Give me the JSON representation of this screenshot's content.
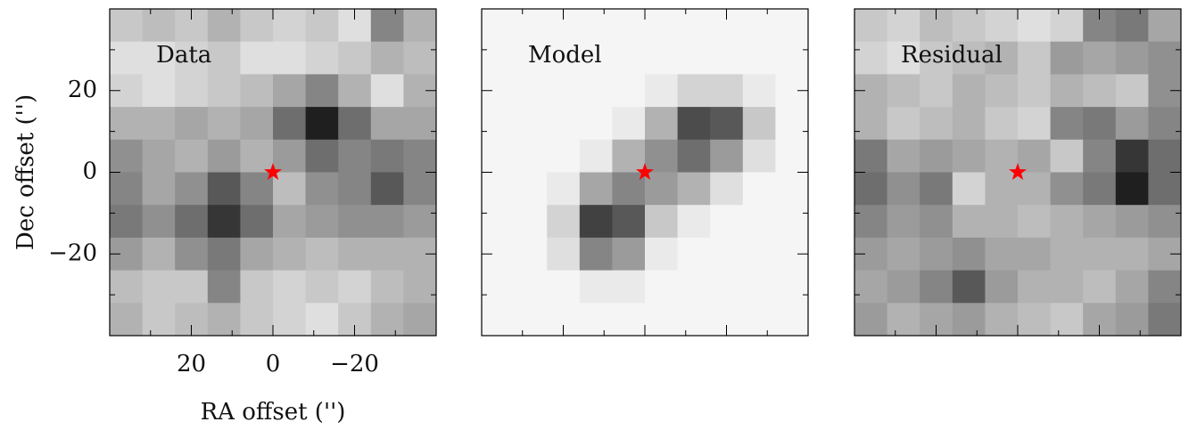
{
  "chart_data": [
    {
      "type": "heatmap",
      "title": "Data",
      "xlabel": "RA offset ('')",
      "ylabel": "Dec offset ('')",
      "tick_labels": true,
      "xlim": [
        40,
        -40
      ],
      "ylim": [
        -40,
        40
      ],
      "xticks": [
        20,
        0,
        {
          "value": -20,
          "label": "−20"
        }
      ],
      "yticks": [
        {
          "value": -20,
          "label": "−20"
        },
        0,
        20
      ],
      "minor_ticks": [
        -30,
        -10,
        10,
        30
      ],
      "marker": {
        "x": 0,
        "y": 0,
        "color": "#ff0000"
      },
      "z": [
        [
          0.2,
          0.25,
          0.2,
          0.3,
          0.2,
          0.15,
          0.2,
          0.1,
          0.5,
          0.3
        ],
        [
          0.1,
          0.1,
          0.15,
          0.2,
          0.1,
          0.1,
          0.15,
          0.2,
          0.3,
          0.25
        ],
        [
          0.15,
          0.1,
          0.15,
          0.2,
          0.25,
          0.35,
          0.5,
          0.3,
          0.1,
          0.3
        ],
        [
          0.3,
          0.3,
          0.35,
          0.3,
          0.35,
          0.6,
          0.95,
          0.6,
          0.35,
          0.35
        ],
        [
          0.45,
          0.35,
          0.3,
          0.4,
          0.3,
          0.4,
          0.6,
          0.5,
          0.55,
          0.5
        ],
        [
          0.5,
          0.35,
          0.45,
          0.7,
          0.5,
          0.25,
          0.45,
          0.5,
          0.7,
          0.5
        ],
        [
          0.55,
          0.45,
          0.6,
          0.85,
          0.6,
          0.35,
          0.4,
          0.45,
          0.45,
          0.4
        ],
        [
          0.4,
          0.3,
          0.45,
          0.55,
          0.35,
          0.3,
          0.25,
          0.3,
          0.3,
          0.3
        ],
        [
          0.25,
          0.2,
          0.2,
          0.5,
          0.2,
          0.15,
          0.2,
          0.15,
          0.25,
          0.3
        ],
        [
          0.3,
          0.2,
          0.25,
          0.3,
          0.2,
          0.15,
          0.1,
          0.2,
          0.3,
          0.35
        ]
      ]
    },
    {
      "type": "heatmap",
      "title": "Model",
      "tick_labels": false,
      "xlim": [
        40,
        -40
      ],
      "ylim": [
        -40,
        40
      ],
      "xticks": [
        20,
        0,
        -20
      ],
      "yticks": [
        -20,
        0,
        20
      ],
      "minor_ticks": [
        -30,
        -10,
        10,
        30
      ],
      "marker": {
        "x": 0,
        "y": 0,
        "color": "#ff0000"
      },
      "z": [
        [
          0,
          0,
          0,
          0,
          0,
          0,
          0,
          0,
          0,
          0
        ],
        [
          0,
          0,
          0,
          0,
          0,
          0,
          0,
          0,
          0,
          0
        ],
        [
          0,
          0,
          0,
          0,
          0,
          0.05,
          0.15,
          0.15,
          0.05,
          0
        ],
        [
          0,
          0,
          0,
          0,
          0.05,
          0.3,
          0.75,
          0.7,
          0.2,
          0
        ],
        [
          0,
          0,
          0,
          0.05,
          0.3,
          0.45,
          0.6,
          0.4,
          0.1,
          0
        ],
        [
          0,
          0,
          0.05,
          0.35,
          0.5,
          0.4,
          0.3,
          0.1,
          0,
          0
        ],
        [
          0,
          0,
          0.15,
          0.8,
          0.7,
          0.2,
          0.05,
          0,
          0,
          0
        ],
        [
          0,
          0,
          0.1,
          0.5,
          0.4,
          0.05,
          0,
          0,
          0,
          0
        ],
        [
          0,
          0,
          0,
          0.05,
          0.05,
          0,
          0,
          0,
          0,
          0
        ],
        [
          0,
          0,
          0,
          0,
          0,
          0,
          0,
          0,
          0,
          0
        ]
      ]
    },
    {
      "type": "heatmap",
      "title": "Residual",
      "tick_labels": false,
      "xlim": [
        40,
        -40
      ],
      "ylim": [
        -40,
        40
      ],
      "xticks": [
        20,
        0,
        -20
      ],
      "yticks": [
        -20,
        0,
        20
      ],
      "minor_ticks": [
        -30,
        -10,
        10,
        30
      ],
      "marker": {
        "x": 0,
        "y": 0,
        "color": "#ff0000"
      },
      "z": [
        [
          0.2,
          0.15,
          0.25,
          0.2,
          0.15,
          0.1,
          0.15,
          0.5,
          0.55,
          0.35
        ],
        [
          0.15,
          0.1,
          0.2,
          0.25,
          0.3,
          0.2,
          0.4,
          0.35,
          0.4,
          0.45
        ],
        [
          0.3,
          0.25,
          0.2,
          0.3,
          0.25,
          0.2,
          0.3,
          0.25,
          0.2,
          0.45
        ],
        [
          0.3,
          0.2,
          0.25,
          0.3,
          0.2,
          0.15,
          0.5,
          0.55,
          0.4,
          0.5
        ],
        [
          0.55,
          0.35,
          0.4,
          0.35,
          0.3,
          0.35,
          0.2,
          0.5,
          0.85,
          0.6
        ],
        [
          0.6,
          0.45,
          0.55,
          0.15,
          0.3,
          0.3,
          0.45,
          0.55,
          0.95,
          0.6
        ],
        [
          0.5,
          0.4,
          0.45,
          0.3,
          0.3,
          0.25,
          0.3,
          0.35,
          0.4,
          0.45
        ],
        [
          0.4,
          0.35,
          0.4,
          0.45,
          0.35,
          0.35,
          0.3,
          0.3,
          0.3,
          0.35
        ],
        [
          0.35,
          0.4,
          0.5,
          0.7,
          0.4,
          0.3,
          0.3,
          0.25,
          0.35,
          0.5
        ],
        [
          0.4,
          0.3,
          0.35,
          0.4,
          0.3,
          0.25,
          0.2,
          0.35,
          0.4,
          0.55
        ]
      ]
    }
  ]
}
